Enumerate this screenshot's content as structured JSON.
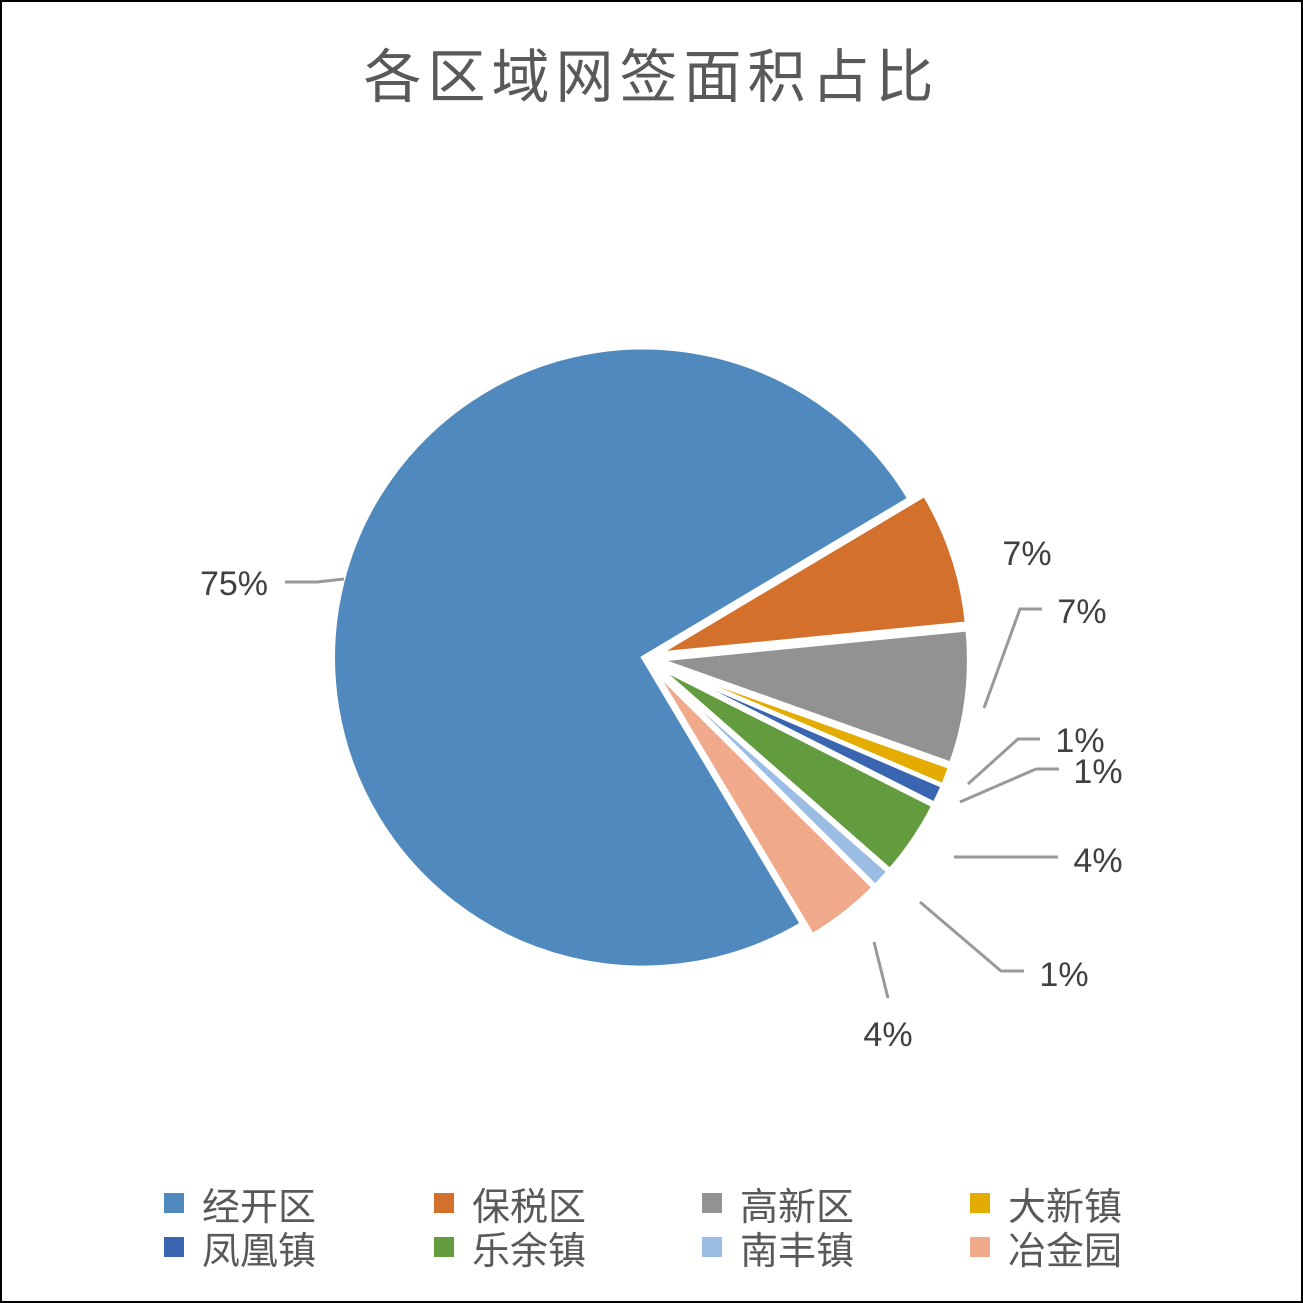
{
  "chart_data": {
    "type": "pie",
    "title": "各区域网签面积占比",
    "categories": [
      "经开区",
      "保税区",
      "高新区",
      "大新镇",
      "凤凰镇",
      "乐余镇",
      "南丰镇",
      "冶金园"
    ],
    "values": [
      75,
      7,
      7,
      1,
      1,
      4,
      1,
      4
    ],
    "data_labels": [
      "75%",
      "7%",
      "7%",
      "1%",
      "1%",
      "4%",
      "1%",
      "4%"
    ],
    "colors": [
      "#4F89BD",
      "#D2702C",
      "#929292",
      "#E4AB00",
      "#3A65B0",
      "#639B3F",
      "#9BBDE3",
      "#F1A98C"
    ],
    "exploded": true,
    "legend_position": "bottom"
  }
}
